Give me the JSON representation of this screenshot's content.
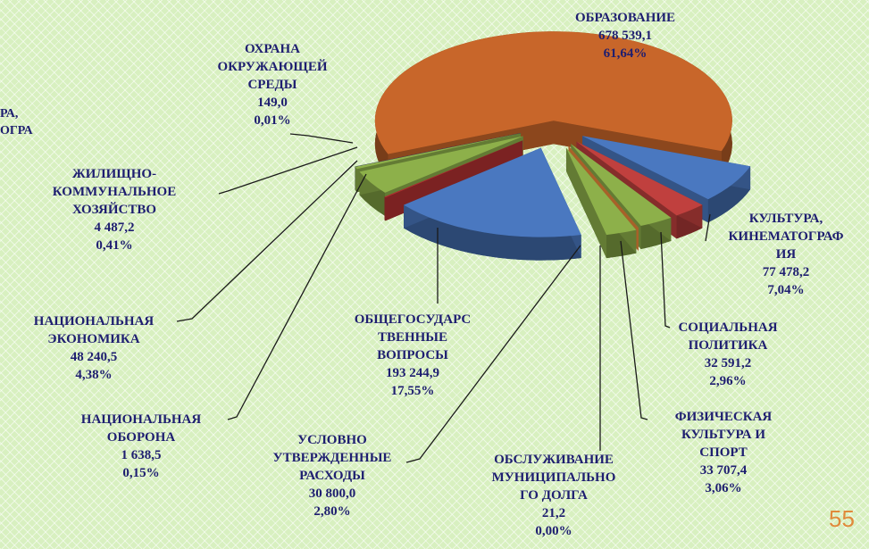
{
  "chart_data": {
    "type": "pie",
    "categories": [
      "ОБРАЗОВАНИЕ",
      "КУЛЬТУРА,\nКИНЕМАТОГРАФ\nИЯ",
      "СОЦИАЛЬНАЯ\nПОЛИТИКА",
      "ФИЗИЧЕСКАЯ\nКУЛЬТУРА И\nСПОРТ",
      "ОБСЛУЖИВАНИЕ\nМУНИЦИПАЛЬНО\nГО ДОЛГА",
      "УСЛОВНО\nУТВЕРЖДЕННЫЕ\nРАСХОДЫ",
      "ОБЩЕГОСУДАРС\nТВЕННЫЕ\nВОПРОСЫ",
      "НАЦИОНАЛЬНАЯ\nОБОРОНА",
      "НАЦИОНАЛЬНАЯ\nЭКОНОМИКА",
      "ЖИЛИЩНО-\nКОММУНАЛЬНОЕ\nХОЗЯЙСТВО",
      "ОХРАНА\nОКРУЖАЮЩЕЙ\nСРЕДЫ"
    ],
    "values": [
      678539.1,
      77478.2,
      32591.2,
      33707.4,
      21.2,
      30800.0,
      193244.9,
      1638.5,
      48240.5,
      4487.2,
      149.0
    ],
    "value_labels": [
      "678 539,1",
      "77 478,2",
      "32 591,2",
      "33 707,4",
      "21,2",
      "30 800,0",
      "193 244,9",
      "1 638,5",
      "48 240,5",
      "4 487,2",
      "149,0"
    ],
    "percents": [
      61.64,
      7.04,
      2.96,
      3.06,
      0.0,
      2.8,
      17.55,
      0.15,
      4.38,
      0.41,
      0.01
    ],
    "percent_labels": [
      "61,64%",
      "7,04%",
      "2,96%",
      "3,06%",
      "0,00%",
      "2,80%",
      "17,55%",
      "0,15%",
      "4,38%",
      "0,41%",
      "0,01%"
    ],
    "colors": [
      "#c8662a",
      "#4a78c0",
      "#c0403e",
      "#8db04a",
      "#f08a3a",
      "#8db04a",
      "#4a78c0",
      "#b03030",
      "#8db04a",
      "#8db04a",
      "#3a3a8a"
    ]
  },
  "cut_label": "РА,\nОГРА",
  "page_number": "55"
}
